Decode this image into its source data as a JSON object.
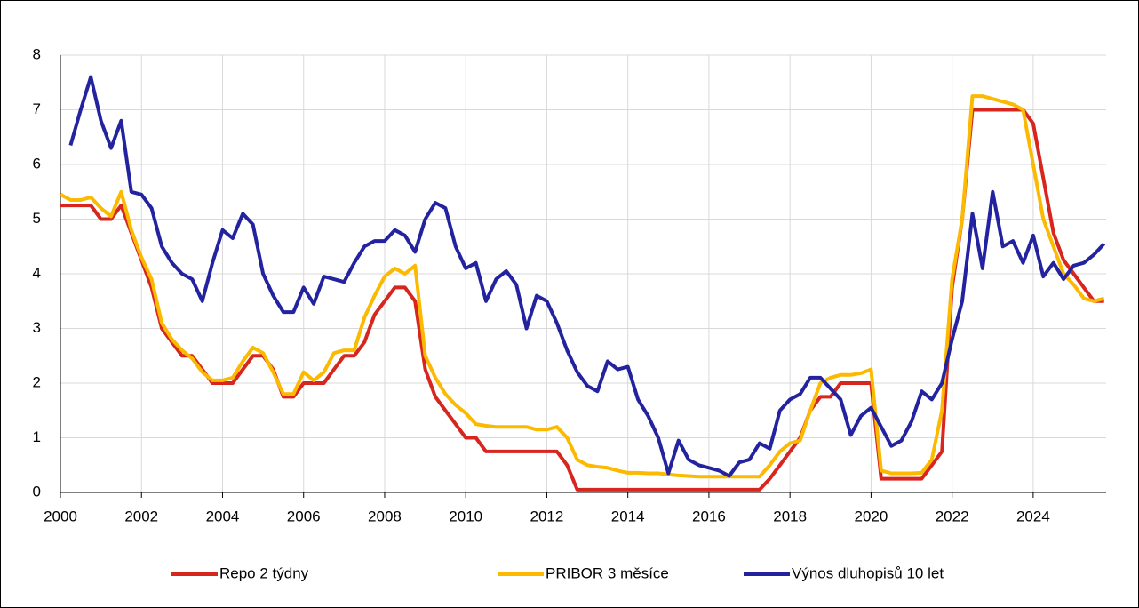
{
  "chart_data": {
    "type": "line",
    "x": [
      2000,
      2000.25,
      2000.5,
      2000.75,
      2001,
      2001.25,
      2001.5,
      2001.75,
      2002,
      2002.25,
      2002.5,
      2002.75,
      2003,
      2003.25,
      2003.5,
      2003.75,
      2004,
      2004.25,
      2004.5,
      2004.75,
      2005,
      2005.25,
      2005.5,
      2005.75,
      2006,
      2006.25,
      2006.5,
      2006.75,
      2007,
      2007.25,
      2007.5,
      2007.75,
      2008,
      2008.25,
      2008.5,
      2008.75,
      2009,
      2009.25,
      2009.5,
      2009.75,
      2010,
      2010.25,
      2010.5,
      2010.75,
      2011,
      2011.25,
      2011.5,
      2011.75,
      2012,
      2012.25,
      2012.5,
      2012.75,
      2013,
      2013.25,
      2013.5,
      2013.75,
      2014,
      2014.25,
      2014.5,
      2014.75,
      2015,
      2015.25,
      2015.5,
      2015.75,
      2016,
      2016.25,
      2016.5,
      2016.75,
      2017,
      2017.25,
      2017.5,
      2017.75,
      2018,
      2018.25,
      2018.5,
      2018.75,
      2019,
      2019.25,
      2019.5,
      2019.75,
      2020,
      2020.25,
      2020.5,
      2020.75,
      2021,
      2021.25,
      2021.5,
      2021.75,
      2022,
      2022.25,
      2022.5,
      2022.75,
      2023,
      2023.25,
      2023.5,
      2023.75,
      2024,
      2024.25,
      2024.5,
      2024.75,
      2025,
      2025.25,
      2025.5,
      2025.75
    ],
    "series": [
      {
        "name": "Repo 2 týdny",
        "color": "#d7261e",
        "values": [
          5.25,
          5.25,
          5.25,
          5.25,
          5.0,
          5.0,
          5.25,
          4.75,
          4.25,
          3.75,
          3.0,
          2.75,
          2.5,
          2.5,
          2.25,
          2.0,
          2.0,
          2.0,
          2.25,
          2.5,
          2.5,
          2.25,
          1.75,
          1.75,
          2.0,
          2.0,
          2.0,
          2.25,
          2.5,
          2.5,
          2.75,
          3.25,
          3.5,
          3.75,
          3.75,
          3.5,
          2.25,
          1.75,
          1.5,
          1.25,
          1.0,
          1.0,
          0.75,
          0.75,
          0.75,
          0.75,
          0.75,
          0.75,
          0.75,
          0.75,
          0.5,
          0.05,
          0.05,
          0.05,
          0.05,
          0.05,
          0.05,
          0.05,
          0.05,
          0.05,
          0.05,
          0.05,
          0.05,
          0.05,
          0.05,
          0.05,
          0.05,
          0.05,
          0.05,
          0.05,
          0.25,
          0.5,
          0.75,
          1.0,
          1.5,
          1.75,
          1.75,
          2.0,
          2.0,
          2.0,
          2.0,
          0.25,
          0.25,
          0.25,
          0.25,
          0.25,
          0.5,
          0.75,
          3.75,
          5.0,
          7.0,
          7.0,
          7.0,
          7.0,
          7.0,
          7.0,
          6.75,
          5.75,
          4.75,
          4.25,
          4.0,
          3.75,
          3.5,
          3.5
        ]
      },
      {
        "name": "PRIBOR 3 měsíce",
        "color": "#fbb900",
        "values": [
          5.45,
          5.35,
          5.35,
          5.4,
          5.2,
          5.05,
          5.5,
          4.8,
          4.3,
          3.9,
          3.1,
          2.8,
          2.6,
          2.45,
          2.2,
          2.05,
          2.05,
          2.1,
          2.4,
          2.65,
          2.55,
          2.2,
          1.8,
          1.8,
          2.2,
          2.05,
          2.2,
          2.55,
          2.6,
          2.6,
          3.2,
          3.6,
          3.95,
          4.1,
          4.0,
          4.15,
          2.5,
          2.1,
          1.8,
          1.6,
          1.45,
          1.25,
          1.22,
          1.2,
          1.2,
          1.2,
          1.2,
          1.15,
          1.15,
          1.2,
          1.0,
          0.6,
          0.5,
          0.47,
          0.45,
          0.4,
          0.36,
          0.36,
          0.35,
          0.35,
          0.33,
          0.31,
          0.3,
          0.29,
          0.29,
          0.29,
          0.29,
          0.29,
          0.29,
          0.29,
          0.5,
          0.75,
          0.9,
          0.95,
          1.5,
          2.0,
          2.1,
          2.15,
          2.15,
          2.18,
          2.25,
          0.4,
          0.35,
          0.35,
          0.35,
          0.36,
          0.6,
          1.5,
          3.9,
          5.0,
          7.25,
          7.25,
          7.2,
          7.15,
          7.1,
          7.0,
          6.0,
          5.0,
          4.5,
          4.0,
          3.8,
          3.55,
          3.5,
          3.55
        ]
      },
      {
        "name": "Výnos dluhopisů 10 let",
        "color": "#2323a0",
        "values": [
          null,
          6.35,
          7.0,
          7.6,
          6.8,
          6.3,
          6.8,
          5.5,
          5.45,
          5.2,
          4.5,
          4.2,
          4.0,
          3.9,
          3.5,
          4.2,
          4.8,
          4.65,
          5.1,
          4.9,
          4.0,
          3.6,
          3.3,
          3.3,
          3.75,
          3.45,
          3.95,
          3.9,
          3.85,
          4.2,
          4.5,
          4.6,
          4.6,
          4.8,
          4.7,
          4.4,
          5.0,
          5.3,
          5.2,
          4.5,
          4.1,
          4.2,
          3.5,
          3.9,
          4.05,
          3.8,
          3.0,
          3.6,
          3.5,
          3.1,
          2.6,
          2.2,
          1.95,
          1.85,
          2.4,
          2.25,
          2.3,
          1.7,
          1.4,
          1.0,
          0.35,
          0.95,
          0.6,
          0.5,
          0.45,
          0.4,
          0.3,
          0.55,
          0.6,
          0.9,
          0.8,
          1.5,
          1.7,
          1.8,
          2.1,
          2.1,
          1.9,
          1.7,
          1.05,
          1.4,
          1.55,
          1.2,
          0.85,
          0.95,
          1.3,
          1.85,
          1.7,
          2.0,
          2.8,
          3.5,
          5.1,
          4.1,
          5.5,
          4.5,
          4.6,
          4.2,
          4.7,
          3.95,
          4.2,
          3.9,
          4.15,
          4.2,
          4.35,
          4.55
        ]
      }
    ],
    "xlim": [
      2000,
      2025.8
    ],
    "xticks": [
      2000,
      2002,
      2004,
      2006,
      2008,
      2010,
      2012,
      2014,
      2016,
      2018,
      2020,
      2022,
      2024
    ],
    "ylim": [
      0,
      8
    ],
    "yticks": [
      0,
      1,
      2,
      3,
      4,
      5,
      6,
      7,
      8
    ],
    "grid": true,
    "legend": "bottom"
  }
}
